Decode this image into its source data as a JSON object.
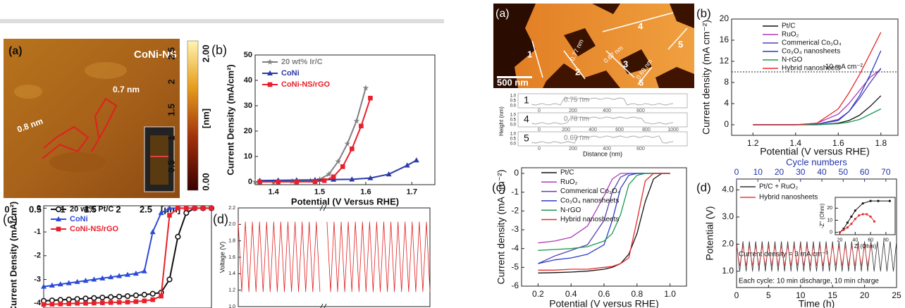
{
  "chart_data": [
    {
      "type": "line",
      "panel": "(b)",
      "xlabel": "Potential (V Versus RHE)",
      "ylabel": "Current Density (mA/cm²)",
      "xlim": [
        1.36,
        1.75
      ],
      "xticks": [
        1.4,
        1.5,
        1.6,
        1.7
      ],
      "ylim": [
        -1.1,
        50
      ],
      "yticks": [
        0,
        10,
        20,
        30,
        40,
        50
      ],
      "legend": "upper left",
      "series": [
        {
          "name": "20 wt% Ir/C",
          "color": "#808080",
          "marker": "star",
          "x": [
            1.36,
            1.4,
            1.44,
            1.48,
            1.5,
            1.52,
            1.54,
            1.56,
            1.58,
            1.6
          ],
          "values": [
            0,
            0,
            0.2,
            0.5,
            1,
            3,
            8,
            15,
            24,
            37
          ]
        },
        {
          "name": "CoNi",
          "color": "#2b3aa8",
          "marker": "triangle",
          "x": [
            1.37,
            1.41,
            1.45,
            1.49,
            1.53,
            1.57,
            1.61,
            1.65,
            1.69,
            1.71
          ],
          "values": [
            0.5,
            0.6,
            0.7,
            0.8,
            0.9,
            1,
            1.5,
            3,
            6.5,
            8.5
          ]
        },
        {
          "name": "CoNi-NS/rGO",
          "color": "#e8202a",
          "marker": "square",
          "x": [
            1.37,
            1.41,
            1.45,
            1.49,
            1.51,
            1.53,
            1.55,
            1.57,
            1.59,
            1.61
          ],
          "values": [
            0,
            0,
            0,
            0.1,
            0.5,
            2,
            6,
            13,
            22,
            33
          ]
        }
      ]
    },
    {
      "type": "line",
      "panel": "(c)",
      "ylabel": "Current Density (mA/cm²)",
      "xlim": [
        0,
        1
      ],
      "ylim": [
        -4.2,
        0.1
      ],
      "yticks": [
        0,
        -1,
        -2,
        -3,
        -4
      ],
      "legend": "upper left",
      "x": [
        0,
        0.05,
        0.1,
        0.15,
        0.2,
        0.25,
        0.3,
        0.35,
        0.4,
        0.45,
        0.5,
        0.55,
        0.6,
        0.65,
        0.7,
        0.75,
        0.8,
        0.85,
        0.9,
        0.95,
        1
      ],
      "series": [
        {
          "name": "20 wt% Pt/C",
          "color": "#111111",
          "marker": "circle",
          "values": [
            -3.9,
            -3.88,
            -3.86,
            -3.84,
            -3.82,
            -3.8,
            -3.78,
            -3.76,
            -3.74,
            -3.72,
            -3.7,
            -3.67,
            -3.64,
            -3.6,
            -3.55,
            -3.0,
            -1.2,
            -0.2,
            0,
            0,
            0
          ]
        },
        {
          "name": "CoNi",
          "color": "#2b4bd8",
          "marker": "triangle",
          "values": [
            -3.3,
            -3.25,
            -3.2,
            -3.15,
            -3.1,
            -3.05,
            -3.0,
            -2.95,
            -2.9,
            -2.85,
            -2.8,
            -2.75,
            -2.65,
            -1.0,
            -0.2,
            0,
            0,
            0,
            0,
            0,
            0
          ]
        },
        {
          "name": "CoNi-NS/rGO",
          "color": "#e8202a",
          "marker": "square",
          "values": [
            -4.05,
            -4.04,
            -4.03,
            -4.02,
            -4.0,
            -4.0,
            -3.99,
            -3.98,
            -3.97,
            -3.96,
            -3.95,
            -3.93,
            -3.9,
            -3.85,
            -3.7,
            -0.3,
            0,
            0,
            0,
            0,
            0
          ]
        }
      ]
    },
    {
      "type": "line",
      "panel": "(d)",
      "ylabel": "Voltage (V)",
      "ylim": [
        1.0,
        2.2
      ],
      "yticks": [
        {
          "value": 1,
          "label": "1.0"
        },
        1.2,
        1.4,
        1.6,
        1.8,
        {
          "value": 2,
          "label": "2.0"
        },
        2.2
      ],
      "series": [
        {
          "color": "#e02020",
          "values": [
            2.03,
            1.18,
            2.03,
            1.18,
            2.03,
            1.18,
            2.03,
            1.18,
            2.03,
            1.18,
            2.03,
            1.18,
            2.03,
            1.18,
            2.03,
            1.18,
            2.03,
            1.18,
            2.03,
            1.18,
            2.03,
            1.18,
            2.03,
            1.18,
            null,
            2.03,
            1.18,
            2.03,
            1.18,
            2.03,
            1.18,
            2.03,
            1.18,
            2.03,
            1.18,
            2.03,
            1.18,
            2.03,
            1.18,
            2.03,
            1.18,
            2.03,
            1.18,
            2.03,
            1.18,
            2.03,
            1.18,
            2.03,
            1.18,
            2.03,
            1.18,
            2.03,
            1.18,
            2.03,
            1.18
          ]
        }
      ]
    },
    {
      "type": "line",
      "panel": "(b)",
      "xlabel": "Potential (V versus RHE)",
      "ylabel": "Current density (mA cm⁻²)",
      "xlim": [
        1.1,
        1.88
      ],
      "xticks": [
        1.2,
        1.4,
        1.6,
        1.8
      ],
      "ylim": [
        -2,
        20
      ],
      "yticks": [
        0,
        4,
        8,
        12,
        16,
        20
      ],
      "legend": "upper left",
      "hline": {
        "value": 10,
        "label": "10 mA cm⁻²"
      },
      "x": [
        1.2,
        1.4,
        1.5,
        1.6,
        1.65,
        1.7,
        1.75,
        1.8
      ],
      "series": [
        {
          "name": "Pt/C",
          "color": "#111111",
          "values": [
            0,
            0,
            0,
            0.3,
            0.8,
            1.8,
            3.5,
            5.5
          ]
        },
        {
          "name": "RuO₂",
          "color": "#b03ab8",
          "values": [
            0,
            0,
            0.3,
            2,
            4,
            6.5,
            9,
            10.5
          ]
        },
        {
          "name": "Commerical Co₃O₄",
          "color": "#5a3fb0",
          "values": [
            0,
            0,
            0.1,
            1,
            2.5,
            5,
            8,
            10.7
          ]
        },
        {
          "name": "Co₃O₄ nanosheets",
          "color": "#2a3cc8",
          "values": [
            0,
            0,
            0.1,
            0.8,
            2.5,
            5.5,
            9.5,
            14
          ]
        },
        {
          "name": "N-rGO",
          "color": "#1a9a50",
          "values": [
            0,
            0,
            0,
            0.2,
            0.5,
            1,
            2,
            3
          ]
        },
        {
          "name": "Hybrid nanosheets",
          "color": "#e8282a",
          "values": [
            0,
            0,
            0.3,
            3,
            6,
            9.5,
            13.5,
            17.5
          ]
        }
      ]
    },
    {
      "type": "line",
      "panel": "(c)",
      "xlabel": "Potential (V versus RHE)",
      "ylabel": "Current density (mA cm⁻²)",
      "xlim": [
        0.1,
        1.1
      ],
      "xticks": [
        0.2,
        0.4,
        0.6,
        0.8,
        {
          "value": 1,
          "label": "1.0"
        }
      ],
      "ylim": [
        -6,
        0.3
      ],
      "yticks": [
        0,
        -1,
        -2,
        -3,
        -4,
        -5,
        -6
      ],
      "legend": "upper left",
      "x": [
        0.2,
        0.3,
        0.4,
        0.5,
        0.6,
        0.65,
        0.7,
        0.75,
        0.8,
        0.85,
        0.9,
        0.95,
        1.0
      ],
      "series": [
        {
          "name": "Pt/C",
          "color": "#111111",
          "values": [
            -5.3,
            -5.28,
            -5.25,
            -5.2,
            -5.1,
            -5.0,
            -4.8,
            -4.3,
            -3.2,
            -1.5,
            -0.3,
            0,
            0
          ]
        },
        {
          "name": "RuO₂",
          "color": "#b03ab8",
          "values": [
            -3.7,
            -3.6,
            -3.4,
            -2.8,
            -1.2,
            -0.3,
            0,
            0,
            0,
            0,
            0,
            0,
            0
          ]
        },
        {
          "name": "Commerical Co₃O₄",
          "color": "#5a3fb0",
          "values": [
            -4.8,
            -4.4,
            -4.1,
            -3.8,
            -2.5,
            -1,
            -0.2,
            0,
            0,
            0,
            0,
            0,
            0
          ]
        },
        {
          "name": "Co₃O₄ nanosheets",
          "color": "#2a3cc8",
          "values": [
            -4.8,
            -4.6,
            -4.5,
            -4.3,
            -3.8,
            -2.5,
            -0.8,
            -0.1,
            0,
            0,
            0,
            0,
            0
          ]
        },
        {
          "name": "N-rGO",
          "color": "#1a9a50",
          "values": [
            -4.1,
            -4.05,
            -4.0,
            -3.9,
            -3.6,
            -3.2,
            -2.2,
            -0.6,
            -0.1,
            0,
            0,
            0,
            0
          ]
        },
        {
          "name": "Hybrid nanosheets",
          "color": "#e8282a",
          "values": [
            -5.15,
            -5.15,
            -5.1,
            -5.1,
            -5.0,
            -4.95,
            -4.8,
            -4.5,
            -2.5,
            -0.4,
            0,
            0,
            0
          ]
        }
      ]
    },
    {
      "type": "line",
      "panel": "(d)",
      "xlabel": "Time (h)",
      "ylabel": "Potential (V)",
      "x2label": "Cycle numbers",
      "xlim": [
        0,
        25
      ],
      "xticks": [
        0,
        5,
        10,
        15,
        20,
        25
      ],
      "x2lim": [
        0,
        75
      ],
      "x2ticks": [
        0,
        10,
        20,
        30,
        40,
        50,
        60,
        70
      ],
      "ylim": [
        0.4,
        4.4
      ],
      "yticks": [
        {
          "value": 1,
          "label": "1.0"
        },
        {
          "value": 2,
          "label": "2.0"
        },
        {
          "value": 3,
          "label": "3.0"
        },
        {
          "value": 4,
          "label": "4.0"
        }
      ],
      "legend": "upper left",
      "annotations": [
        "Current density = 3 mA cm⁻³",
        "Each cycle: 10 min discharge, 10 min charge"
      ],
      "x": [
        0,
        0.5,
        1,
        1.5,
        2,
        2.5,
        3,
        3.5,
        4,
        4.5,
        5,
        5.5,
        6,
        6.5,
        7,
        7.5,
        8,
        8.5,
        9,
        9.5,
        10,
        10.5,
        11,
        11.5,
        12,
        12.5,
        13,
        13.5,
        14,
        14.5,
        15,
        15.5,
        16,
        16.5,
        17,
        17.5,
        18,
        18.5,
        19,
        19.5,
        20,
        20.5,
        21,
        21.5,
        22,
        22.5,
        23,
        23.5,
        24,
        24.5,
        25
      ],
      "series": [
        {
          "name": "Pt/C + RuO₂",
          "color": "#333333",
          "values": [
            2.1,
            1,
            2.1,
            1,
            2.1,
            1,
            2.1,
            1,
            2.1,
            1,
            2.1,
            1,
            2.1,
            1,
            2.1,
            1,
            2.1,
            1,
            2.1,
            1,
            2.1,
            1,
            2.1,
            1,
            2.1,
            1,
            2.1,
            1,
            2.1,
            1,
            2.1,
            1,
            2.1,
            1,
            2.1,
            1,
            2.1,
            1,
            2.1,
            1,
            2.1,
            1,
            2.1,
            1,
            2.1,
            1,
            2.1,
            1,
            2.1,
            1,
            2.1
          ]
        },
        {
          "name": "Hybrid nanosheets",
          "color": "#e04040",
          "values": [
            1.95,
            1.2,
            1.95,
            1.2,
            1.95,
            1.2,
            1.95,
            1.2,
            1.95,
            1.2,
            1.95,
            1.2,
            1.95,
            1.2,
            1.95,
            1.2,
            1.95,
            1.2,
            1.95,
            1.2,
            1.95,
            1.2,
            1.95,
            1.2,
            1.95,
            1.2,
            1.95,
            1.2,
            1.95,
            1.2,
            1.95,
            1.2,
            1.95,
            1.2,
            1.95,
            1.2,
            1.95,
            1.2,
            1.95,
            1.2,
            1.95,
            1.2,
            1.95,
            null,
            null,
            null,
            null,
            null,
            null,
            null,
            null
          ]
        }
      ]
    },
    {
      "type": "line",
      "xlabel": "Z' (Ohm)",
      "ylabel": "-Z'' (Ohm)",
      "xlim": [
        14,
        92
      ],
      "xticks": [
        20,
        40,
        60,
        80
      ],
      "ylim": [
        -2,
        29
      ],
      "yticks": [
        0,
        10,
        20
      ],
      "series": [
        {
          "color": "#111111",
          "marker": "dot",
          "x": [
            20,
            25,
            30,
            35,
            40,
            50,
            60,
            70,
            85
          ],
          "values": [
            0,
            3,
            8,
            13,
            18,
            24,
            26,
            26,
            26
          ]
        },
        {
          "color": "#e03030",
          "marker": "dot",
          "x": [
            20,
            25,
            30,
            35,
            40,
            45,
            50,
            55,
            60,
            65
          ],
          "values": [
            0,
            2,
            4,
            7,
            11,
            14,
            15,
            15,
            13,
            9
          ]
        }
      ]
    }
  ],
  "images": {
    "left": {
      "panel": "(a)",
      "title": "CoNi-NS",
      "annotations": [
        "0.7 nm",
        "0.8 nm"
      ],
      "side_ticks": [
        "2.5",
        "2",
        "1.5",
        "1",
        "0.5"
      ],
      "bottom_ticks": [
        "0",
        "0.5",
        "1",
        "1.5",
        "2",
        "2.5"
      ],
      "unit": "[μm]",
      "colorbar_ticks": [
        "2.00",
        "0.00"
      ],
      "colorbar_label": "[nm]"
    },
    "right": {
      "panel": "(a)",
      "scale_bar": "500 nm",
      "line_labels": [
        "1",
        "2",
        "3",
        "4",
        "5",
        "6"
      ],
      "annotations": [
        "0.77 nm",
        "0.67 nm",
        "0.69 nm"
      ]
    },
    "profiles": {
      "ylabel": "Height (nm)",
      "xlabel": "Distance (nm)",
      "rows": [
        {
          "label": "1",
          "height": "0.75 nm",
          "yticks": [
            "1.0",
            "0.5",
            "0.0"
          ],
          "xticks": [
            "0",
            "200",
            "400",
            "600"
          ]
        },
        {
          "label": "4",
          "height": "0.78 nm",
          "yticks": [
            "1.0",
            "0.5",
            "0.0"
          ],
          "xticks": [
            "0",
            "200",
            "400",
            "600",
            "800",
            "1000"
          ]
        },
        {
          "label": "5",
          "height": "0.69 nm",
          "yticks": [
            "1.0",
            "0.5",
            "0.0"
          ],
          "xticks": [
            "0",
            "200",
            "400",
            "600"
          ]
        }
      ]
    }
  }
}
